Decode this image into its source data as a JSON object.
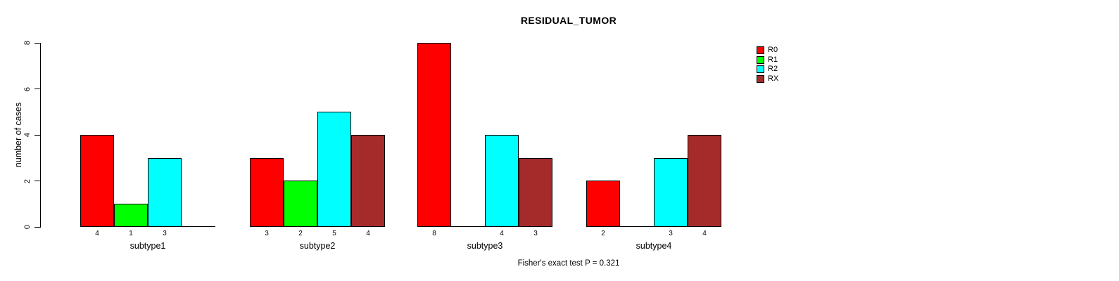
{
  "chart_data": {
    "type": "bar",
    "title": "RESIDUAL_TUMOR",
    "ylabel": "number of cases",
    "xlabel": "",
    "annotation": "Fisher's exact test P = 0.321",
    "categories": [
      "subtype1",
      "subtype2",
      "subtype3",
      "subtype4"
    ],
    "series": [
      {
        "name": "R0",
        "color": "#ff0000",
        "values": [
          4,
          3,
          8,
          2
        ]
      },
      {
        "name": "R1",
        "color": "#00ff00",
        "values": [
          1,
          2,
          0,
          0
        ]
      },
      {
        "name": "R2",
        "color": "#00ffff",
        "values": [
          3,
          5,
          4,
          3
        ]
      },
      {
        "name": "RX",
        "color": "#a52a2a",
        "values": [
          0,
          4,
          3,
          4
        ]
      }
    ],
    "yticks": [
      0,
      2,
      4,
      6,
      8
    ],
    "ylim": [
      0,
      8
    ],
    "grid": false,
    "legend_position": "right",
    "bar_value_labels": "shown under each nonzero bar",
    "zero_bars": "drawn as flat baseline segment with no label"
  },
  "legend": {
    "items": [
      {
        "label": "R0",
        "color": "#ff0000"
      },
      {
        "label": "R1",
        "color": "#00ff00"
      },
      {
        "label": "R2",
        "color": "#00ffff"
      },
      {
        "label": "RX",
        "color": "#a52a2a"
      }
    ]
  }
}
